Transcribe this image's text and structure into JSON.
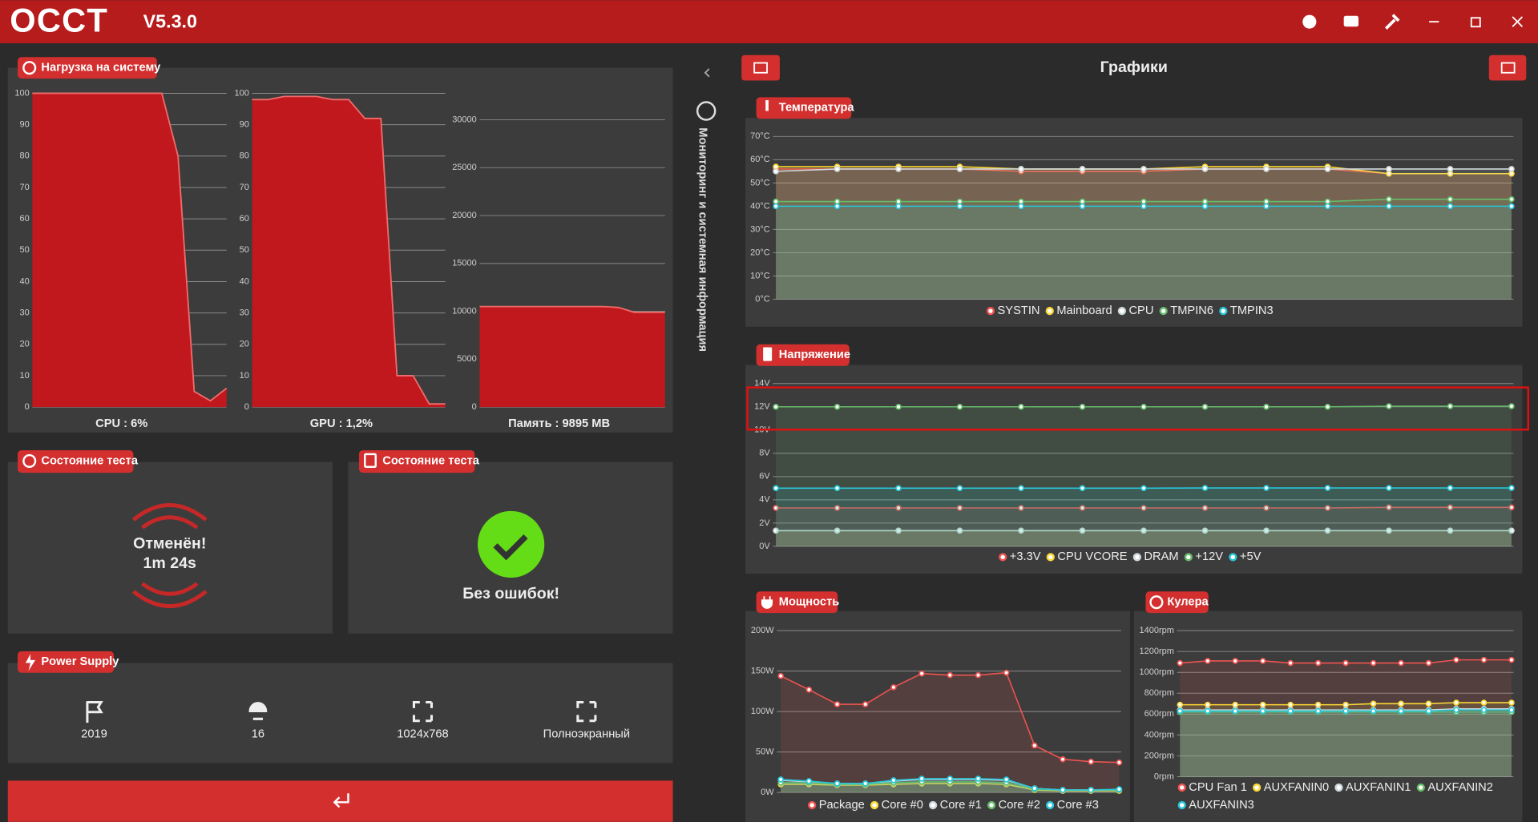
{
  "header": {
    "logo": "OCCT",
    "version": "V5.3.0"
  },
  "sidebar": {
    "label": "Мониторинг и системная информация"
  },
  "load": {
    "title": "Нагрузка на систему",
    "charts": [
      {
        "type": "area",
        "label": "CPU : 6%",
        "color": "#c0181c",
        "ylim": [
          0,
          100
        ],
        "yticks": [
          0,
          10,
          20,
          30,
          40,
          50,
          60,
          70,
          80,
          90,
          100
        ],
        "values": [
          100,
          100,
          100,
          100,
          100,
          100,
          100,
          100,
          100,
          80,
          5,
          2,
          6
        ]
      },
      {
        "type": "area",
        "label": "GPU : 1,2%",
        "color": "#c0181c",
        "ylim": [
          0,
          100
        ],
        "yticks": [
          0,
          10,
          20,
          30,
          40,
          50,
          60,
          70,
          80,
          90,
          100
        ],
        "values": [
          98,
          98,
          99,
          99,
          99,
          98,
          98,
          92,
          92,
          10,
          10,
          1,
          1
        ]
      },
      {
        "type": "area",
        "label": "Память : 9895 MB",
        "color": "#c0181c",
        "ylim": [
          0,
          32768
        ],
        "yticks": [
          0,
          5000,
          10000,
          15000,
          20000,
          25000,
          30000
        ],
        "values": [
          10500,
          10500,
          10500,
          10500,
          10500,
          10500,
          10500,
          10500,
          10500,
          10400,
          9900,
          9900,
          9900
        ]
      }
    ]
  },
  "test_state": {
    "title": "Состояние теста",
    "status": "Отменён!",
    "time": "1m 24s"
  },
  "test_result": {
    "title": "Состояние теста",
    "status": "Без ошибок!"
  },
  "power_supply": {
    "title": "Power Supply",
    "items": [
      "2019",
      "16",
      "1024x768",
      "Полноэкранный"
    ]
  },
  "graphs": {
    "title": "Графики",
    "charts": [
      {
        "type": "line",
        "title": "Температура",
        "ylim": [
          0,
          70
        ],
        "yticks": [
          {
            "value": 0,
            "label": "0°C"
          },
          {
            "value": 10,
            "label": "10°C"
          },
          {
            "value": 20,
            "label": "20°C"
          },
          {
            "value": 30,
            "label": "30°C"
          },
          {
            "value": 40,
            "label": "40°C"
          },
          {
            "value": 50,
            "label": "50°C"
          },
          {
            "value": 60,
            "label": "60°C"
          },
          {
            "value": 70,
            "label": "70°C"
          }
        ],
        "series": [
          {
            "name": "SYSTIN",
            "color": "#ef5350",
            "values": [
              56,
              56,
              56,
              56,
              55,
              55,
              55,
              56,
              56,
              56,
              54,
              54,
              54
            ]
          },
          {
            "name": "Mainboard",
            "color": "#fdd835",
            "values": [
              57,
              57,
              57,
              57,
              56,
              56,
              56,
              57,
              57,
              57,
              54,
              54,
              54
            ]
          },
          {
            "name": "CPU",
            "color": "#cfd8dc",
            "values": [
              55,
              56,
              56,
              56,
              56,
              56,
              56,
              56,
              56,
              56,
              56,
              56,
              56
            ]
          },
          {
            "name": "TMPIN6",
            "color": "#66bb6a",
            "values": [
              42,
              42,
              42,
              42,
              42,
              42,
              42,
              42,
              42,
              42,
              43,
              43,
              43
            ]
          },
          {
            "name": "TMPIN3",
            "color": "#26c6da",
            "values": [
              40,
              40,
              40,
              40,
              40,
              40,
              40,
              40,
              40,
              40,
              40,
              40,
              40
            ]
          }
        ]
      },
      {
        "type": "line",
        "title": "Напряжение",
        "ylim": [
          0,
          14
        ],
        "yticks": [
          {
            "value": 0,
            "label": "0V"
          },
          {
            "value": 2,
            "label": "2V"
          },
          {
            "value": 4,
            "label": "4V"
          },
          {
            "value": 6,
            "label": "6V"
          },
          {
            "value": 8,
            "label": "8V"
          },
          {
            "value": 10,
            "label": "10V"
          },
          {
            "value": 12,
            "label": "12V"
          },
          {
            "value": 14,
            "label": "14V"
          }
        ],
        "series": [
          {
            "name": "+3.3V",
            "color": "#ef5350",
            "values": [
              3.3,
              3.3,
              3.3,
              3.3,
              3.3,
              3.3,
              3.3,
              3.3,
              3.3,
              3.3,
              3.35,
              3.35,
              3.35
            ]
          },
          {
            "name": "CPU VCORE",
            "color": "#fdd835",
            "values": [
              1.35,
              1.35,
              1.35,
              1.35,
              1.35,
              1.35,
              1.35,
              1.35,
              1.35,
              1.35,
              1.35,
              1.35,
              1.35
            ]
          },
          {
            "name": "DRAM",
            "color": "#cfd8dc",
            "values": [
              1.35,
              1.35,
              1.35,
              1.35,
              1.35,
              1.35,
              1.35,
              1.35,
              1.35,
              1.35,
              1.35,
              1.35,
              1.35
            ]
          },
          {
            "name": "+12V",
            "color": "#66bb6a",
            "values": [
              12,
              12,
              12,
              12,
              12,
              12,
              12,
              12,
              12,
              12,
              12.05,
              12.05,
              12.05
            ]
          },
          {
            "name": "+5V",
            "color": "#26c6da",
            "values": [
              5,
              5,
              5,
              5,
              5,
              5,
              5,
              5.02,
              5.02,
              5.02,
              5.02,
              5.02,
              5.02
            ]
          }
        ]
      },
      {
        "type": "line",
        "title": "Мощность",
        "ylim": [
          0,
          200
        ],
        "yticks": [
          {
            "value": 0,
            "label": "0W"
          },
          {
            "value": 50,
            "label": "50W"
          },
          {
            "value": 100,
            "label": "100W"
          },
          {
            "value": 150,
            "label": "150W"
          },
          {
            "value": 200,
            "label": "200W"
          }
        ],
        "series": [
          {
            "name": "Package",
            "color": "#ef5350",
            "values": [
              144,
              127,
              109,
              109,
              130,
              147,
              145,
              145,
              148,
              58,
              41,
              38,
              37
            ]
          },
          {
            "name": "Core #0",
            "color": "#fdd835",
            "values": [
              10,
              10,
              9,
              9,
              10,
              11,
              11,
              11,
              10,
              3,
              2,
              2,
              2
            ]
          },
          {
            "name": "Core #1",
            "color": "#cfd8dc",
            "values": [
              15,
              13,
              11,
              11,
              14,
              16,
              16,
              16,
              15,
              5,
              3,
              3,
              3
            ]
          },
          {
            "name": "Core #2",
            "color": "#66bb6a",
            "values": [
              12,
              12,
              10,
              10,
              12,
              13,
              13,
              13,
              12,
              4,
              3,
              3,
              3
            ]
          },
          {
            "name": "Core #3",
            "color": "#26c6da",
            "values": [
              16,
              14,
              11,
              11,
              15,
              17,
              17,
              17,
              16,
              5,
              3,
              3,
              4
            ]
          }
        ]
      },
      {
        "type": "line",
        "title": "Кулера",
        "ylim": [
          0,
          1400
        ],
        "yticks": [
          {
            "value": 0,
            "label": "0rpm"
          },
          {
            "value": 200,
            "label": "200rpm"
          },
          {
            "value": 400,
            "label": "400rpm"
          },
          {
            "value": 600,
            "label": "600rpm"
          },
          {
            "value": 800,
            "label": "800rpm"
          },
          {
            "value": 1000,
            "label": "1000rpm"
          },
          {
            "value": 1200,
            "label": "1200rpm"
          },
          {
            "value": 1400,
            "label": "1400rpm"
          }
        ],
        "series": [
          {
            "name": "CPU Fan 1",
            "color": "#ef5350",
            "values": [
              1090,
              1110,
              1110,
              1110,
              1090,
              1090,
              1090,
              1090,
              1090,
              1090,
              1120,
              1120,
              1120
            ]
          },
          {
            "name": "AUXFANIN0",
            "color": "#fdd835",
            "values": [
              690,
              690,
              690,
              690,
              690,
              690,
              690,
              700,
              700,
              700,
              710,
              710,
              710
            ]
          },
          {
            "name": "AUXFANIN1",
            "color": "#cfd8dc",
            "values": [
              640,
              640,
              640,
              640,
              640,
              640,
              640,
              640,
              640,
              640,
              650,
              650,
              650
            ]
          },
          {
            "name": "AUXFANIN2",
            "color": "#66bb6a",
            "values": [
              620,
              620,
              620,
              620,
              620,
              620,
              620,
              620,
              620,
              620,
              620,
              620,
              620
            ]
          },
          {
            "name": "AUXFANIN3",
            "color": "#26c6da",
            "values": [
              630,
              630,
              630,
              630,
              630,
              630,
              630,
              630,
              630,
              630,
              640,
              640,
              640
            ]
          }
        ]
      }
    ]
  }
}
